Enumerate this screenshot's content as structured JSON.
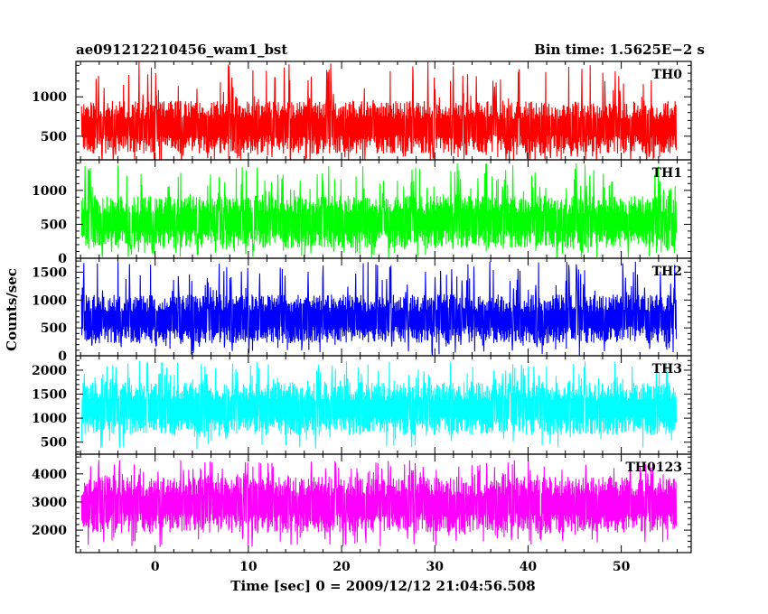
{
  "chart_data": {
    "type": "line",
    "title": "ae091212210456_wam1_bst",
    "subtitle": "Bin time: 1.5625E−2 s",
    "xlabel": "Time [sec] 0 = 2009/12/12 21:04:56.508",
    "ylabel": "Counts/sec",
    "xlim": [
      -8.5,
      57.5
    ],
    "x_data_range": [
      -7.9,
      55.9
    ],
    "x_ticks": [
      0,
      10,
      20,
      30,
      40,
      50
    ],
    "grid": false,
    "legend": "none",
    "panels": [
      {
        "name": "TH0",
        "color": "#ff0000",
        "ylim": [
          200,
          1450
        ],
        "yticks": [
          500,
          1000
        ],
        "baseline_min": 150,
        "band_low": 280,
        "band_high": 950,
        "peak_max": 1450
      },
      {
        "name": "TH1",
        "color": "#00ff00",
        "ylim": [
          0,
          1450
        ],
        "yticks": [
          0,
          500,
          1000
        ],
        "baseline_min": 0,
        "band_low": 150,
        "band_high": 920,
        "peak_max": 1400
      },
      {
        "name": "TH2",
        "color": "#0000ff",
        "ylim": [
          0,
          1750
        ],
        "yticks": [
          0,
          500,
          1000,
          1500
        ],
        "baseline_min": 0,
        "band_low": 220,
        "band_high": 1100,
        "peak_max": 1700
      },
      {
        "name": "TH3",
        "color": "#00ffff",
        "ylim": [
          250,
          2300
        ],
        "yticks": [
          500,
          1000,
          1500,
          2000
        ],
        "baseline_min": 350,
        "band_low": 650,
        "band_high": 1750,
        "peak_max": 2200
      },
      {
        "name": "TH0123",
        "color": "#ff00ff",
        "ylim": [
          1200,
          4700
        ],
        "yticks": [
          2000,
          3000,
          4000
        ],
        "baseline_min": 1400,
        "band_low": 1900,
        "band_high": 3900,
        "peak_max": 4500
      }
    ]
  }
}
